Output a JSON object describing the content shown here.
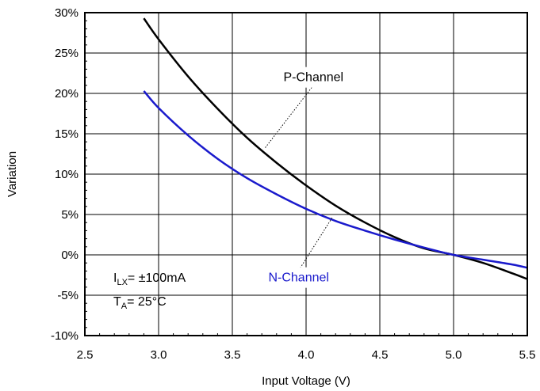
{
  "chart_data": {
    "type": "line",
    "title": "",
    "xlabel": "Input Voltage (V)",
    "ylabel": "Variation",
    "xlim": [
      2.5,
      5.5
    ],
    "ylim": [
      -10,
      30
    ],
    "grid": true,
    "x_ticks": [
      2.5,
      3.0,
      3.5,
      4.0,
      4.5,
      5.0,
      5.5
    ],
    "x_tick_labels": [
      "2.5",
      "3.0",
      "3.5",
      "4.0",
      "4.5",
      "5.0",
      "5.5"
    ],
    "y_ticks": [
      -10,
      -5,
      0,
      5,
      10,
      15,
      20,
      25,
      30
    ],
    "y_tick_labels": [
      "-10%",
      "-5%",
      "0%",
      "5%",
      "10%",
      "15%",
      "20%",
      "25%",
      "30%"
    ],
    "series": [
      {
        "name": "P-Channel",
        "color": "#000000",
        "x": [
          2.9,
          3.0,
          3.2,
          3.4,
          3.6,
          3.8,
          4.0,
          4.2,
          4.4,
          4.6,
          4.8,
          5.0,
          5.2,
          5.4,
          5.5
        ],
        "y": [
          29.3,
          26.7,
          22.1,
          18.1,
          14.5,
          11.4,
          8.6,
          6.1,
          4.0,
          2.2,
          0.8,
          0.0,
          -1.0,
          -2.3,
          -3.0
        ]
      },
      {
        "name": "N-Channel",
        "color": "#1a1acc",
        "x": [
          2.9,
          3.0,
          3.2,
          3.4,
          3.6,
          3.8,
          4.0,
          4.2,
          4.4,
          4.6,
          4.8,
          5.0,
          5.2,
          5.4,
          5.5
        ],
        "y": [
          20.3,
          18.2,
          14.8,
          11.9,
          9.5,
          7.5,
          5.7,
          4.2,
          3.0,
          1.9,
          0.9,
          0.0,
          -0.6,
          -1.2,
          -1.6
        ]
      }
    ],
    "annotations": [
      {
        "text": "P-Channel",
        "color": "#000000",
        "x": 4.05,
        "y": 21.5,
        "pointer_to": [
          3.72,
          13.2
        ]
      },
      {
        "text": "N-Channel",
        "color": "#1a1acc",
        "x": 3.95,
        "y": -3.3,
        "pointer_to": [
          4.18,
          4.7
        ]
      }
    ],
    "conditions": {
      "line1_main": "I",
      "line1_sub": "LX",
      "line1_rest": "= ±100mA",
      "line2_main": "T",
      "line2_sub": "A",
      "line2_rest": "= 25°C"
    }
  }
}
